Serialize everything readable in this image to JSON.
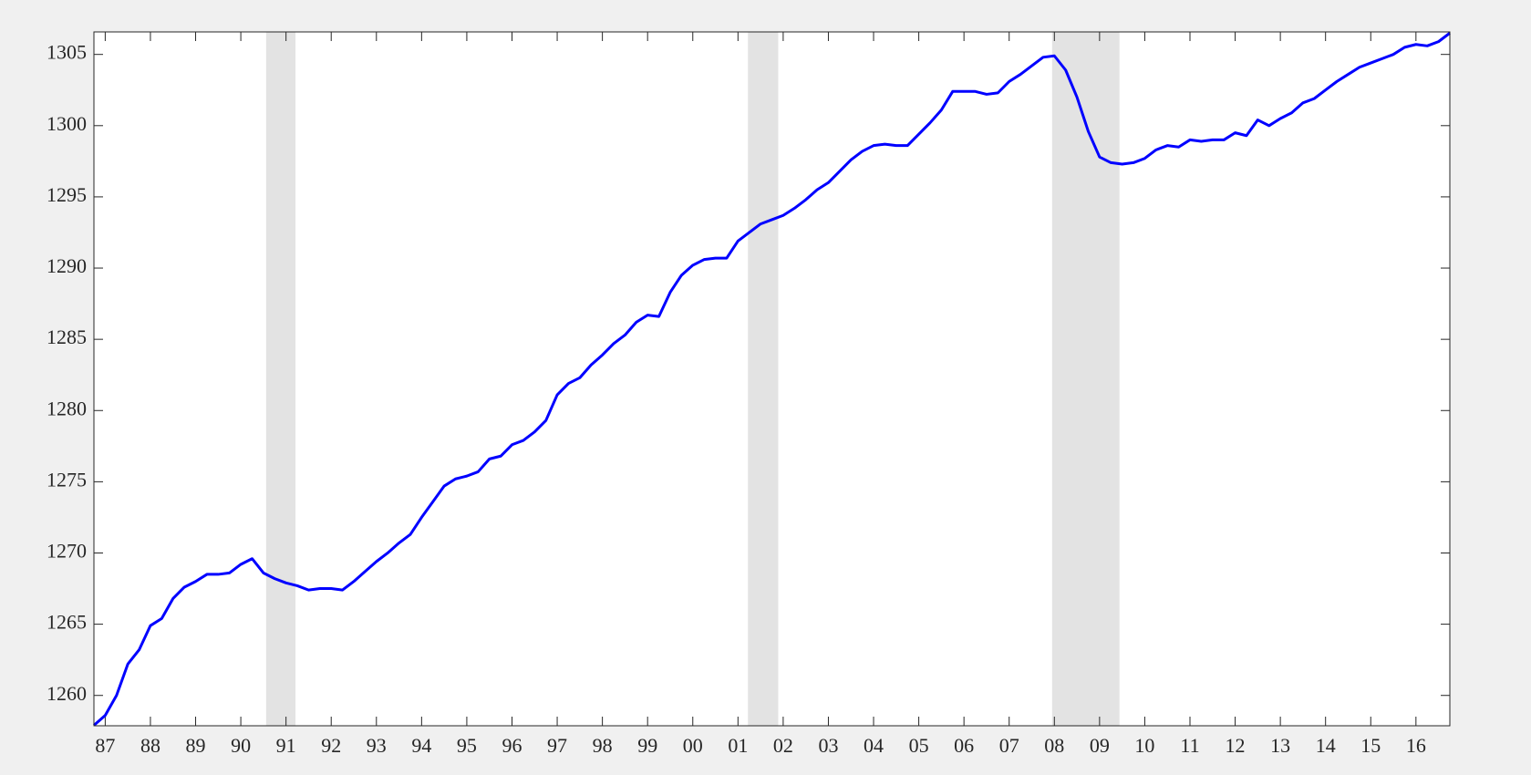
{
  "chart_data": {
    "type": "line",
    "x": [
      1986.75,
      1987,
      1987.25,
      1987.5,
      1987.75,
      1988,
      1988.25,
      1988.5,
      1988.75,
      1989,
      1989.25,
      1989.5,
      1989.75,
      1990,
      1990.25,
      1990.5,
      1990.75,
      1991,
      1991.25,
      1991.5,
      1991.75,
      1992,
      1992.25,
      1992.5,
      1992.75,
      1993,
      1993.25,
      1993.5,
      1993.75,
      1994,
      1994.25,
      1994.5,
      1994.75,
      1995,
      1995.25,
      1995.5,
      1995.75,
      1996,
      1996.25,
      1996.5,
      1996.75,
      1997,
      1997.25,
      1997.5,
      1997.75,
      1998,
      1998.25,
      1998.5,
      1998.75,
      1999,
      1999.25,
      1999.5,
      1999.75,
      2000,
      2000.25,
      2000.5,
      2000.75,
      2001,
      2001.25,
      2001.5,
      2001.75,
      2002,
      2002.25,
      2002.5,
      2002.75,
      2003,
      2003.25,
      2003.5,
      2003.75,
      2004,
      2004.25,
      2004.5,
      2004.75,
      2005,
      2005.25,
      2005.5,
      2005.75,
      2006,
      2006.25,
      2006.5,
      2006.75,
      2007,
      2007.25,
      2007.5,
      2007.75,
      2008,
      2008.25,
      2008.5,
      2008.75,
      2009,
      2009.25,
      2009.5,
      2009.75,
      2010,
      2010.25,
      2010.5,
      2010.75,
      2011,
      2011.25,
      2011.5,
      2011.75,
      2012,
      2012.25,
      2012.5,
      2012.75,
      2013,
      2013.25,
      2013.5,
      2013.75,
      2014,
      2014.25,
      2014.5,
      2014.75,
      2015,
      2015.25,
      2015.5,
      2015.75,
      2016,
      2016.25,
      2016.5,
      2016.75
    ],
    "series": [
      {
        "color": "#0000ff",
        "values": [
          1257.9,
          1258.6,
          1260.0,
          1262.2,
          1263.2,
          1264.9,
          1265.4,
          1266.8,
          1267.6,
          1268.0,
          1268.5,
          1268.5,
          1268.6,
          1269.2,
          1269.6,
          1268.6,
          1268.2,
          1267.9,
          1267.7,
          1267.4,
          1267.5,
          1267.5,
          1267.4,
          1268.0,
          1268.7,
          1269.4,
          1270.0,
          1270.7,
          1271.3,
          1272.5,
          1273.6,
          1274.7,
          1275.2,
          1275.4,
          1275.7,
          1276.6,
          1276.8,
          1277.6,
          1277.9,
          1278.5,
          1279.3,
          1281.1,
          1281.9,
          1282.3,
          1283.2,
          1283.9,
          1284.7,
          1285.3,
          1286.2,
          1286.7,
          1286.6,
          1288.3,
          1289.5,
          1290.2,
          1290.6,
          1290.7,
          1290.7,
          1291.9,
          1292.5,
          1293.1,
          1293.4,
          1293.7,
          1294.2,
          1294.8,
          1295.5,
          1296.0,
          1296.8,
          1297.6,
          1298.2,
          1298.6,
          1298.7,
          1298.6,
          1298.6,
          1299.4,
          1300.2,
          1301.1,
          1302.4,
          1302.4,
          1302.4,
          1302.2,
          1302.3,
          1303.1,
          1303.6,
          1304.2,
          1304.8,
          1304.9,
          1303.9,
          1302.0,
          1299.6,
          1297.8,
          1297.4,
          1297.3,
          1297.4,
          1297.7,
          1298.3,
          1298.6,
          1298.5,
          1299.0,
          1298.9,
          1299.0,
          1299.0,
          1299.5,
          1299.3,
          1300.4,
          1300.0,
          1300.5,
          1300.9,
          1301.6,
          1301.9,
          1302.5,
          1303.1,
          1303.6,
          1304.1,
          1304.4,
          1304.7,
          1305.0,
          1305.5,
          1305.7,
          1305.6,
          1305.9,
          1306.5
        ]
      }
    ],
    "shaded_regions": [
      [
        1990.56,
        1991.21
      ],
      [
        2001.22,
        2001.89
      ],
      [
        2007.95,
        2009.44
      ]
    ],
    "shade_color": "#e3e3e3",
    "xlim": [
      1986.75,
      2016.75
    ],
    "xticks": [
      {
        "value": 1987,
        "label": "87"
      },
      {
        "value": 1988,
        "label": "88"
      },
      {
        "value": 1989,
        "label": "89"
      },
      {
        "value": 1990,
        "label": "90"
      },
      {
        "value": 1991,
        "label": "91"
      },
      {
        "value": 1992,
        "label": "92"
      },
      {
        "value": 1993,
        "label": "93"
      },
      {
        "value": 1994,
        "label": "94"
      },
      {
        "value": 1995,
        "label": "95"
      },
      {
        "value": 1996,
        "label": "96"
      },
      {
        "value": 1997,
        "label": "97"
      },
      {
        "value": 1998,
        "label": "98"
      },
      {
        "value": 1999,
        "label": "99"
      },
      {
        "value": 2000,
        "label": "00"
      },
      {
        "value": 2001,
        "label": "01"
      },
      {
        "value": 2002,
        "label": "02"
      },
      {
        "value": 2003,
        "label": "03"
      },
      {
        "value": 2004,
        "label": "04"
      },
      {
        "value": 2005,
        "label": "05"
      },
      {
        "value": 2006,
        "label": "06"
      },
      {
        "value": 2007,
        "label": "07"
      },
      {
        "value": 2008,
        "label": "08"
      },
      {
        "value": 2009,
        "label": "09"
      },
      {
        "value": 2010,
        "label": "10"
      },
      {
        "value": 2011,
        "label": "11"
      },
      {
        "value": 2012,
        "label": "12"
      },
      {
        "value": 2013,
        "label": "13"
      },
      {
        "value": 2014,
        "label": "14"
      },
      {
        "value": 2015,
        "label": "15"
      },
      {
        "value": 2016,
        "label": "16"
      }
    ],
    "ylim": [
      1257.87,
      1306.58
    ],
    "yticks": [
      1260,
      1265,
      1270,
      1275,
      1280,
      1285,
      1290,
      1295,
      1300,
      1305
    ],
    "grid": false
  }
}
